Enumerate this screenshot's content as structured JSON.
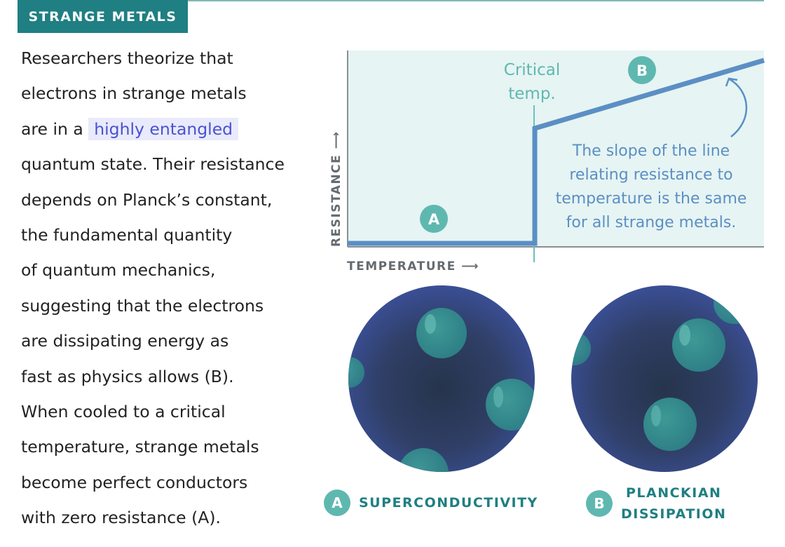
{
  "tag": "STRANGE METALS",
  "body": {
    "line1": "Researchers theorize that",
    "line2": "electrons in strange metals",
    "line3_pre": "are in a ",
    "line3_highlight": "highly entangled",
    "line4": "quantum state. Their resistance",
    "line5": "depends on Planck’s constant,",
    "line6": "the fundamental quantity",
    "line7": "of quantum mechanics,",
    "line8": "suggesting that the electrons",
    "line9": "are dissipating energy as",
    "line10": "fast as physics allows (B).",
    "line11": "When cooled to a critical",
    "line12": "temperature, strange metals",
    "line13": "become perfect conductors",
    "line14": "with zero resistance (A)."
  },
  "chart": {
    "ylabel": "RESISTANCE ⟶",
    "xlabel": "TEMPERATURE ⟶",
    "critical_line1": "Critical",
    "critical_line2": "temp.",
    "badge_a": "A",
    "badge_b": "B",
    "note1": "The slope of the line",
    "note2": "relating resistance to",
    "note3": "temperature is the same",
    "note4": "for all strange metals."
  },
  "legend": {
    "a_badge": "A",
    "a_label": "SUPERCONDUCTIVITY",
    "b_badge": "B",
    "b_label1": "PLANCKIAN",
    "b_label2": "DISSIPATION"
  },
  "colors": {
    "accent": "#1f7f82",
    "teal_badge": "#5fb8b0",
    "chart_bg": "#e6f4f3",
    "line": "#5b8fc4",
    "highlight_text": "#4a52d0",
    "sphere_dark": "#2c3e58",
    "sphere_blue": "#3a4f94"
  }
}
